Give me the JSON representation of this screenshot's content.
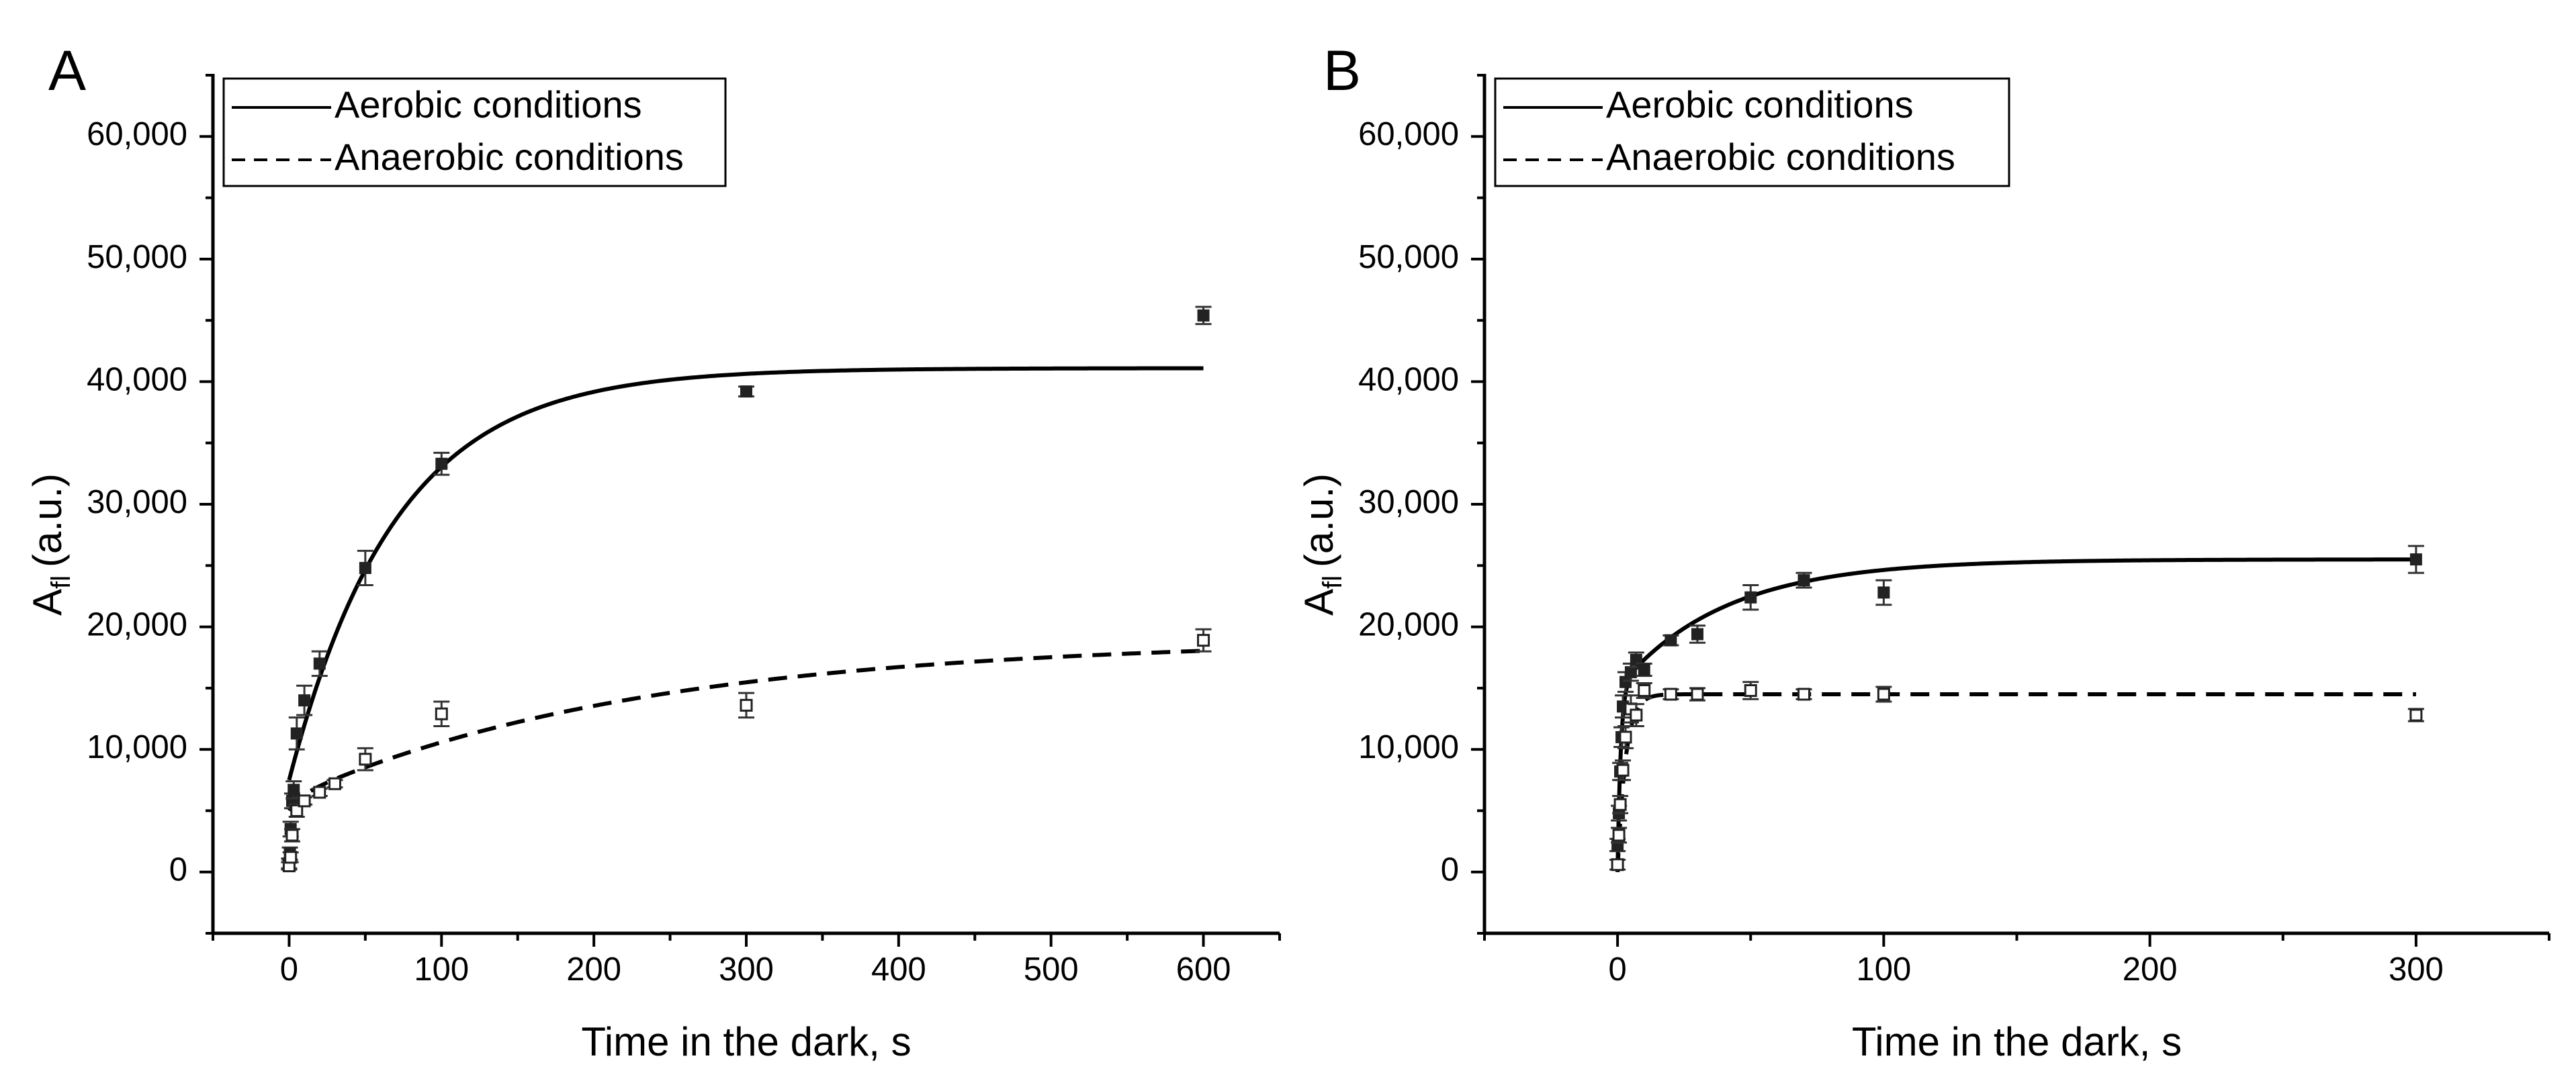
{
  "chart_data": [
    {
      "panel": "A",
      "type": "scatter",
      "xlabel": "Time in the dark, s",
      "ylabel": "A",
      "ylabel_sub": "fl",
      "ylabel_unit": "(a.u.)",
      "xlim": [
        -50,
        650
      ],
      "ylim": [
        -5000,
        65000
      ],
      "xticks": [
        0,
        100,
        200,
        300,
        400,
        500,
        600
      ],
      "xtick_labels": [
        "0",
        "100",
        "200",
        "300",
        "400",
        "500",
        "600"
      ],
      "yticks": [
        0,
        10000,
        20000,
        30000,
        40000,
        50000,
        60000
      ],
      "ytick_labels": [
        "0",
        "10,000",
        "20,000",
        "30,000",
        "40,000",
        "50,000",
        "60,000"
      ],
      "legend": {
        "position": "top-left",
        "entries": [
          {
            "label": "Aerobic conditions",
            "style": "solid"
          },
          {
            "label": "Anaerobic conditions",
            "style": "dashed"
          }
        ]
      },
      "series": [
        {
          "name": "Aerobic conditions",
          "marker": "filled-square",
          "points": [
            {
              "x": 0,
              "y": 700,
              "err": 400
            },
            {
              "x": 0.5,
              "y": 1500,
              "err": 500
            },
            {
              "x": 1,
              "y": 3500,
              "err": 600
            },
            {
              "x": 2,
              "y": 5800,
              "err": 600
            },
            {
              "x": 3,
              "y": 6700,
              "err": 700
            },
            {
              "x": 5,
              "y": 11300,
              "err": 1300
            },
            {
              "x": 10,
              "y": 14000,
              "err": 1200
            },
            {
              "x": 20,
              "y": 17000,
              "err": 1000
            },
            {
              "x": 50,
              "y": 24800,
              "err": 1400
            },
            {
              "x": 100,
              "y": 33300,
              "err": 900
            },
            {
              "x": 300,
              "y": 39200,
              "err": 400
            },
            {
              "x": 600,
              "y": 45400,
              "err": 700
            }
          ],
          "fit": {
            "style": "solid",
            "y0": 7500,
            "plateau": 41100,
            "tau": 70,
            "x_start": 0,
            "x_end": 600
          }
        },
        {
          "name": "Anaerobic conditions",
          "marker": "open-square",
          "points": [
            {
              "x": 0,
              "y": 500,
              "err": 300
            },
            {
              "x": 1,
              "y": 1200,
              "err": 400
            },
            {
              "x": 2,
              "y": 3000,
              "err": 500
            },
            {
              "x": 5,
              "y": 5000,
              "err": 500
            },
            {
              "x": 10,
              "y": 5800,
              "err": 300
            },
            {
              "x": 20,
              "y": 6500,
              "err": 300
            },
            {
              "x": 30,
              "y": 7200,
              "err": 300
            },
            {
              "x": 50,
              "y": 9200,
              "err": 900
            },
            {
              "x": 100,
              "y": 12900,
              "err": 1000
            },
            {
              "x": 300,
              "y": 13600,
              "err": 1000
            },
            {
              "x": 600,
              "y": 18900,
              "err": 900
            }
          ],
          "fit": {
            "style": "dashed",
            "y0": 5000,
            "fast_amp": 1000,
            "fast_tau": 8,
            "slow_amp": 13000,
            "slow_tau": 230,
            "x_start": 0,
            "x_end": 600
          }
        }
      ]
    },
    {
      "panel": "B",
      "type": "scatter",
      "xlabel": "Time in the dark, s",
      "ylabel": "A",
      "ylabel_sub": "fl",
      "ylabel_unit": "(a.u.)",
      "xlim": [
        -50,
        350
      ],
      "ylim": [
        -5000,
        65000
      ],
      "xticks": [
        0,
        100,
        200,
        300
      ],
      "xtick_labels": [
        "0",
        "100",
        "200",
        "300"
      ],
      "yticks": [
        0,
        10000,
        20000,
        30000,
        40000,
        50000,
        60000
      ],
      "ytick_labels": [
        "0",
        "10,000",
        "20,000",
        "30,000",
        "40,000",
        "50,000",
        "60,000"
      ],
      "legend": {
        "position": "top-left",
        "entries": [
          {
            "label": "Aerobic conditions",
            "style": "solid"
          },
          {
            "label": "Anaerobic conditions",
            "style": "dashed"
          }
        ]
      },
      "series": [
        {
          "name": "Aerobic conditions",
          "marker": "filled-square",
          "points": [
            {
              "x": 0,
              "y": 2200,
              "err": 500
            },
            {
              "x": 0.5,
              "y": 4800,
              "err": 600
            },
            {
              "x": 1,
              "y": 8200,
              "err": 700
            },
            {
              "x": 1.5,
              "y": 11000,
              "err": 800
            },
            {
              "x": 2,
              "y": 13500,
              "err": 900
            },
            {
              "x": 3,
              "y": 15500,
              "err": 800
            },
            {
              "x": 5,
              "y": 16300,
              "err": 700
            },
            {
              "x": 7,
              "y": 17300,
              "err": 600
            },
            {
              "x": 10,
              "y": 16500,
              "err": 500
            },
            {
              "x": 20,
              "y": 18900,
              "err": 400
            },
            {
              "x": 30,
              "y": 19400,
              "err": 700
            },
            {
              "x": 50,
              "y": 22400,
              "err": 1000
            },
            {
              "x": 70,
              "y": 23800,
              "err": 600
            },
            {
              "x": 100,
              "y": 22800,
              "err": 1000
            },
            {
              "x": 300,
              "y": 25500,
              "err": 1100
            }
          ],
          "fit": {
            "style": "solid",
            "y0": 0,
            "fast_amp": 15000,
            "fast_tau": 1.2,
            "slow_amp": 10500,
            "slow_tau": 40,
            "x_start": 0,
            "x_end": 300
          }
        },
        {
          "name": "Anaerobic conditions",
          "marker": "open-square",
          "points": [
            {
              "x": 0,
              "y": 600,
              "err": 400
            },
            {
              "x": 0.5,
              "y": 3000,
              "err": 600
            },
            {
              "x": 1,
              "y": 5500,
              "err": 700
            },
            {
              "x": 2,
              "y": 8300,
              "err": 800
            },
            {
              "x": 3,
              "y": 11000,
              "err": 900
            },
            {
              "x": 5,
              "y": 13300,
              "err": 1100
            },
            {
              "x": 7,
              "y": 12800,
              "err": 900
            },
            {
              "x": 10,
              "y": 14800,
              "err": 600
            },
            {
              "x": 20,
              "y": 14500,
              "err": 400
            },
            {
              "x": 30,
              "y": 14500,
              "err": 500
            },
            {
              "x": 50,
              "y": 14800,
              "err": 700
            },
            {
              "x": 70,
              "y": 14500,
              "err": 400
            },
            {
              "x": 100,
              "y": 14500,
              "err": 600
            },
            {
              "x": 300,
              "y": 12800,
              "err": 500
            }
          ],
          "fit": {
            "style": "dashed",
            "y0": 0,
            "fast_amp": 14500,
            "fast_tau": 3,
            "slow_amp": 0,
            "slow_tau": 1,
            "x_start": 0,
            "x_end": 300
          }
        }
      ]
    }
  ]
}
